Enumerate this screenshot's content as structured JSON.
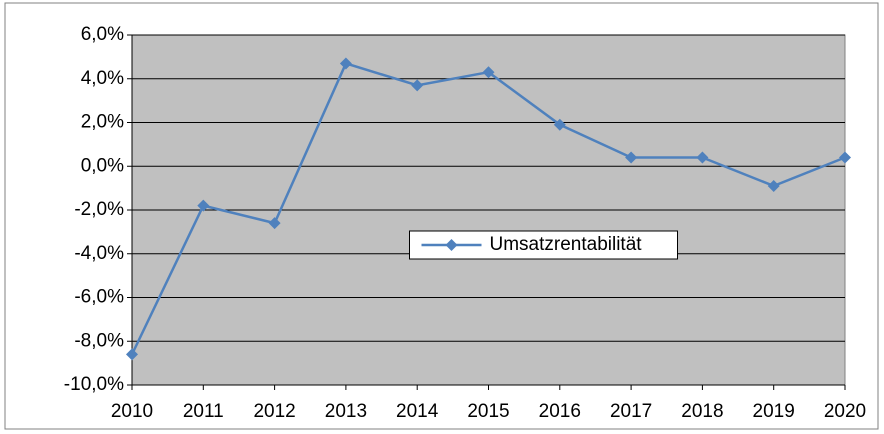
{
  "chart_data": {
    "type": "line",
    "x": [
      2010,
      2011,
      2012,
      2013,
      2014,
      2015,
      2016,
      2017,
      2018,
      2019,
      2020
    ],
    "series": [
      {
        "name": "Umsatzrentabilität",
        "color": "#4f81bd",
        "values": [
          -8.6,
          -1.8,
          -2.6,
          4.7,
          3.7,
          4.3,
          1.9,
          0.4,
          0.4,
          -0.9,
          0.4
        ]
      }
    ],
    "xlim": [
      2010,
      2020
    ],
    "xticks": [
      2010,
      2011,
      2012,
      2013,
      2014,
      2015,
      2016,
      2017,
      2018,
      2019,
      2020
    ],
    "ylim": [
      -10,
      6
    ],
    "yticks": [
      {
        "value": -10,
        "label": "-10,0%"
      },
      {
        "value": -8,
        "label": "-8,0%"
      },
      {
        "value": -6,
        "label": "-6,0%"
      },
      {
        "value": -4,
        "label": "-4,0%"
      },
      {
        "value": -2,
        "label": "-2,0%"
      },
      {
        "value": 0,
        "label": "0,0%"
      },
      {
        "value": 2,
        "label": "2,0%"
      },
      {
        "value": 4,
        "label": "4,0%"
      },
      {
        "value": 6,
        "label": "6,0%"
      }
    ],
    "grid": true,
    "legend": "center",
    "plot_background": "#c0c0c0"
  }
}
